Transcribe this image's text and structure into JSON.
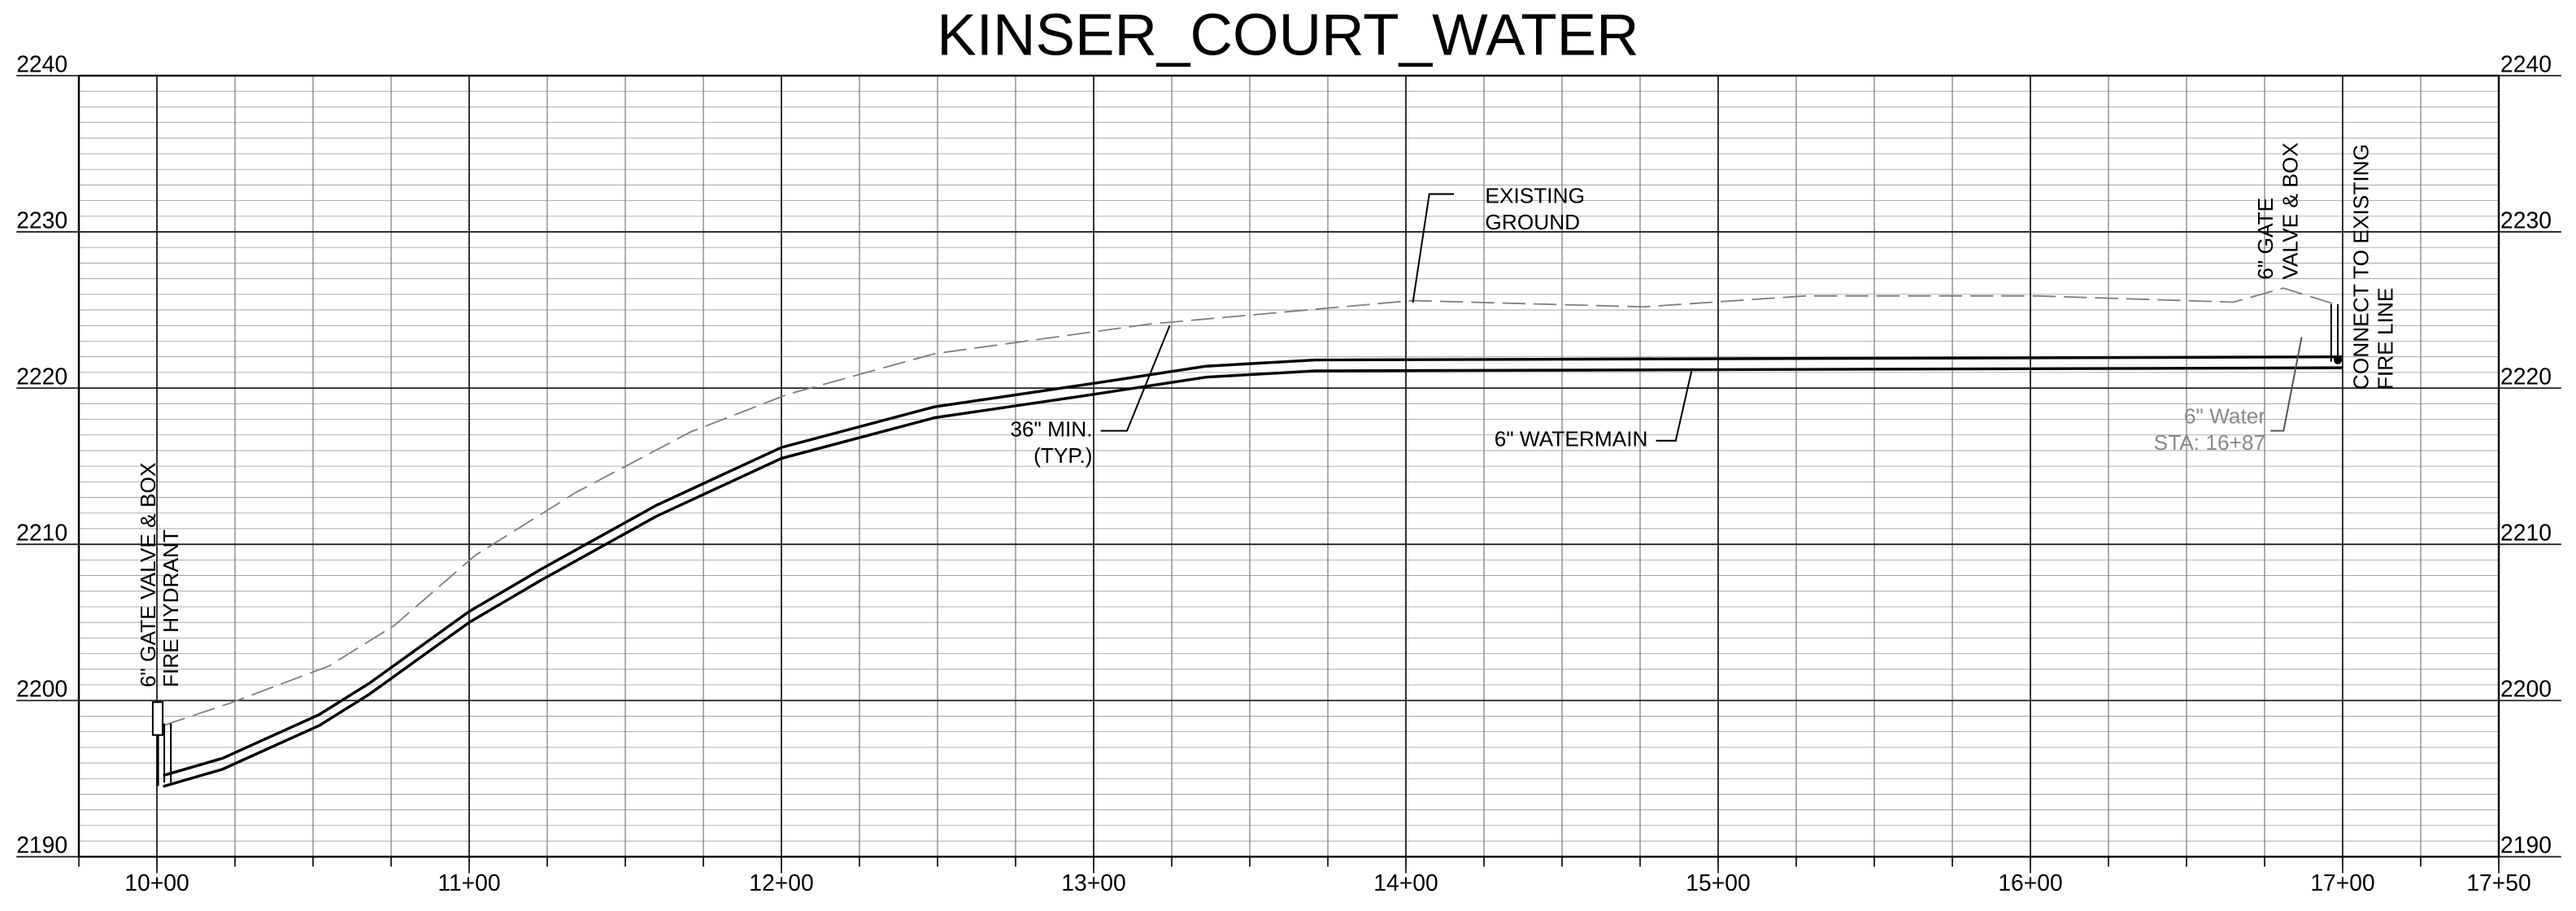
{
  "chart_data": {
    "type": "line",
    "title": "KINSER_COURT_WATER",
    "xlim": [
      975,
      1750
    ],
    "ylim": [
      2190,
      2240
    ],
    "xticks": [
      {
        "value": 1000,
        "label": "10+00"
      },
      {
        "value": 1100,
        "label": "11+00"
      },
      {
        "value": 1200,
        "label": "12+00"
      },
      {
        "value": 1300,
        "label": "13+00"
      },
      {
        "value": 1400,
        "label": "14+00"
      },
      {
        "value": 1500,
        "label": "15+00"
      },
      {
        "value": 1600,
        "label": "16+00"
      },
      {
        "value": 1700,
        "label": "17+00"
      },
      {
        "value": 1750,
        "label": "17+50"
      }
    ],
    "yticks": [
      2190,
      2200,
      2210,
      2220,
      2230,
      2240
    ],
    "xminorticks": [
      975,
      1000,
      1025,
      1050,
      1075,
      1100,
      1125,
      1150,
      1175,
      1200,
      1225,
      1250,
      1275,
      1300,
      1325,
      1350,
      1375,
      1400,
      1425,
      1450,
      1475,
      1500,
      1525,
      1550,
      1575,
      1600,
      1625,
      1650,
      1675,
      1700,
      1725,
      1750
    ],
    "yminorticks": [
      2190,
      2191,
      2192,
      2193,
      2194,
      2195,
      2196,
      2197,
      2198,
      2199,
      2200,
      2201,
      2202,
      2203,
      2204,
      2205,
      2206,
      2207,
      2208,
      2209,
      2210,
      2211,
      2212,
      2213,
      2214,
      2215,
      2216,
      2217,
      2218,
      2219,
      2220,
      2221,
      2222,
      2223,
      2224,
      2225,
      2226,
      2227,
      2228,
      2229,
      2230,
      2231,
      2232,
      2233,
      2234,
      2235,
      2236,
      2237,
      2238,
      2239,
      2240
    ],
    "grid": true,
    "series": [
      {
        "color": "#808080",
        "dashed": true,
        "x": [
          1002,
          1023,
          1055,
          1076,
          1102,
          1134,
          1171,
          1202,
          1249,
          1318,
          1402,
          1476,
          1528,
          1602,
          1665,
          1681,
          1697
        ],
        "values": [
          2198.4,
          2199.8,
          2202.2,
          2204.8,
          2209.3,
          2213.3,
          2217.2,
          2219.6,
          2222.2,
          2224.1,
          2225.6,
          2225.2,
          2225.9,
          2225.9,
          2225.5,
          2226.4,
          2225.4
        ]
      },
      {
        "color": "#000000",
        "dashed": false,
        "x": [
          1002,
          1021,
          1052,
          1068,
          1100,
          1123,
          1160,
          1200,
          1249,
          1300,
          1336,
          1371,
          1700
        ],
        "values": [
          2195.2,
          2196.3,
          2199.1,
          2201.1,
          2205.7,
          2208.4,
          2212.5,
          2216.2,
          2218.8,
          2220.3,
          2221.4,
          2221.8,
          2222.0
        ]
      },
      {
        "color": "#000000",
        "dashed": false,
        "x": [
          1002,
          1021,
          1052,
          1068,
          1100,
          1123,
          1160,
          1200,
          1249,
          1300,
          1336,
          1371,
          1700
        ],
        "values": [
          2194.5,
          2195.6,
          2198.4,
          2200.4,
          2205.0,
          2207.7,
          2211.8,
          2215.5,
          2218.1,
          2219.6,
          2220.7,
          2221.1,
          2221.3
        ]
      }
    ],
    "annotations": [
      {
        "lines": [
          "EXISTING",
          "GROUND"
        ]
      },
      {
        "lines": [
          "36\" MIN.",
          "(TYP.)"
        ]
      },
      {
        "lines": [
          "6\" WATERMAIN"
        ]
      },
      {
        "lines": [
          "6\"  Water",
          "STA:  16+87"
        ]
      },
      {
        "lines": [
          "6\" GATE",
          "VALVE & BOX"
        ]
      },
      {
        "lines": [
          "CONNECT TO EXISTING",
          "FIRE LINE"
        ]
      },
      {
        "lines": [
          "6\" GATE VALVE & BOX",
          "FIRE HYDRANT"
        ]
      }
    ]
  }
}
